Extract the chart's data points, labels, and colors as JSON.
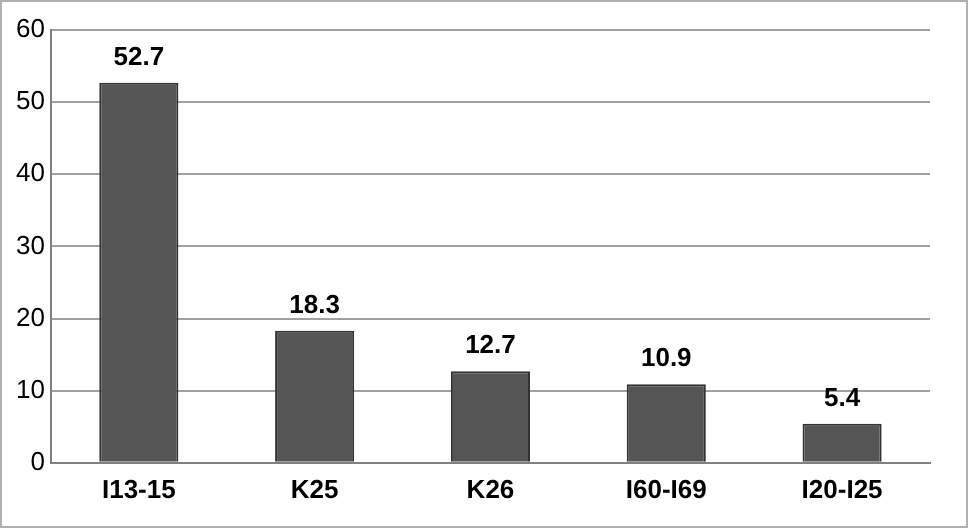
{
  "chart_data": {
    "type": "bar",
    "categories": [
      "I13-15",
      "K25",
      "K26",
      "I60-I69",
      "I20-I25"
    ],
    "values": [
      52.7,
      18.3,
      12.7,
      10.9,
      5.4
    ],
    "color": "#555555",
    "ylim": [
      0,
      60
    ],
    "yticks": [
      0,
      10,
      20,
      30,
      40,
      50,
      60
    ],
    "grid": "y",
    "data_labels": true
  }
}
